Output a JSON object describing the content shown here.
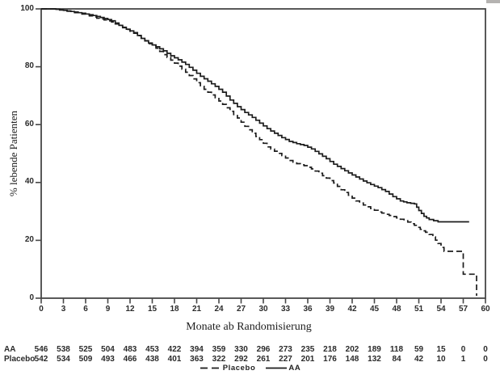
{
  "figure": {
    "background": "#ffffff",
    "frame_color": "#474747",
    "curve_color": "#1c1c1c",
    "text_color": "#2a2a2a"
  },
  "chart_data": {
    "type": "line",
    "subtype": "kaplan-meier-step",
    "title": "",
    "xlabel": "Monate ab Randomisierung",
    "ylabel": "% lebende Patienten",
    "xlim": [
      0,
      60
    ],
    "ylim": [
      0,
      100
    ],
    "x_ticks": [
      0,
      3,
      6,
      9,
      12,
      15,
      18,
      21,
      24,
      27,
      30,
      33,
      36,
      39,
      42,
      45,
      48,
      51,
      54,
      57,
      60
    ],
    "y_ticks": [
      0,
      20,
      40,
      60,
      80,
      100
    ],
    "grid": false,
    "legend_position": "bottom-center",
    "series": [
      {
        "name": "AA",
        "line": "solid",
        "points": [
          [
            0,
            100
          ],
          [
            1.5,
            100
          ],
          [
            2.5,
            99.7
          ],
          [
            3.5,
            99.3
          ],
          [
            4.5,
            98.9
          ],
          [
            5.5,
            98.5
          ],
          [
            6.5,
            98.0
          ],
          [
            7.5,
            97.4
          ],
          [
            8.5,
            96.7
          ],
          [
            9.5,
            95.9
          ],
          [
            10.5,
            94.3
          ],
          [
            11.5,
            93.0
          ],
          [
            12.5,
            91.8
          ],
          [
            13.5,
            89.8
          ],
          [
            14.5,
            88.2
          ],
          [
            15.5,
            86.9
          ],
          [
            16.5,
            85.5
          ],
          [
            17.5,
            83.8
          ],
          [
            18.5,
            82.4
          ],
          [
            19.5,
            80.8
          ],
          [
            20.5,
            78.8
          ],
          [
            21.5,
            76.7
          ],
          [
            22.5,
            75.0
          ],
          [
            23.5,
            73.2
          ],
          [
            24.5,
            71.2
          ],
          [
            25.5,
            68.5
          ],
          [
            26.5,
            66.2
          ],
          [
            27.5,
            64.2
          ],
          [
            28.5,
            62.5
          ],
          [
            29.5,
            60.5
          ],
          [
            30.5,
            58.6
          ],
          [
            31.5,
            57.0
          ],
          [
            32.5,
            55.5
          ],
          [
            33.5,
            54.2
          ],
          [
            34.5,
            53.4
          ],
          [
            35.5,
            52.8
          ],
          [
            36.5,
            51.6
          ],
          [
            37.5,
            49.9
          ],
          [
            38.5,
            48.2
          ],
          [
            39.5,
            46.3
          ],
          [
            40.5,
            44.8
          ],
          [
            41.5,
            43.3
          ],
          [
            42.5,
            41.9
          ],
          [
            43.5,
            40.5
          ],
          [
            44.5,
            39.3
          ],
          [
            45.5,
            38.2
          ],
          [
            46.5,
            36.9
          ],
          [
            47.5,
            35.1
          ],
          [
            48.5,
            33.6
          ],
          [
            49.4,
            33.0
          ],
          [
            50.4,
            32.6
          ],
          [
            51.0,
            30.3
          ],
          [
            51.7,
            28.3
          ],
          [
            52.4,
            27.2
          ],
          [
            53.6,
            26.4
          ],
          [
            57.8,
            26.4
          ]
        ]
      },
      {
        "name": "Placebo",
        "line": "dashed",
        "points": [
          [
            0,
            100
          ],
          [
            1.5,
            100
          ],
          [
            2.5,
            99.6
          ],
          [
            3.5,
            99.2
          ],
          [
            4.5,
            98.7
          ],
          [
            5.5,
            98.2
          ],
          [
            6.5,
            97.6
          ],
          [
            7.5,
            96.8
          ],
          [
            8.5,
            96.2
          ],
          [
            9.5,
            95.5
          ],
          [
            10.5,
            94.1
          ],
          [
            11.5,
            92.9
          ],
          [
            12.5,
            91.6
          ],
          [
            13.5,
            89.9
          ],
          [
            14.5,
            88.0
          ],
          [
            15.5,
            86.4
          ],
          [
            16.5,
            84.2
          ],
          [
            17.5,
            82.3
          ],
          [
            18.5,
            80.2
          ],
          [
            19.5,
            78.1
          ],
          [
            20.5,
            75.8
          ],
          [
            21.5,
            73.2
          ],
          [
            22.5,
            71.2
          ],
          [
            23.5,
            69.3
          ],
          [
            24.5,
            67.0
          ],
          [
            25.5,
            64.6
          ],
          [
            26.5,
            62.3
          ],
          [
            27.5,
            59.4
          ],
          [
            28.5,
            57.0
          ],
          [
            29.5,
            54.8
          ],
          [
            30.5,
            52.3
          ],
          [
            31.5,
            50.8
          ],
          [
            32.5,
            49.3
          ],
          [
            33.5,
            47.6
          ],
          [
            34.5,
            46.5
          ],
          [
            35.5,
            45.8
          ],
          [
            36.5,
            44.7
          ],
          [
            37.5,
            43.2
          ],
          [
            38.5,
            41.5
          ],
          [
            39.5,
            39.8
          ],
          [
            40.5,
            37.5
          ],
          [
            41.5,
            35.6
          ],
          [
            42.5,
            33.6
          ],
          [
            43.5,
            32.2
          ],
          [
            44.5,
            31.0
          ],
          [
            45.5,
            29.8
          ],
          [
            46.5,
            29.0
          ],
          [
            47.5,
            28.2
          ],
          [
            48.5,
            27.3
          ],
          [
            49.5,
            26.3
          ],
          [
            50.4,
            25.2
          ],
          [
            51.2,
            23.8
          ],
          [
            51.9,
            22.8
          ],
          [
            52.9,
            21.2
          ],
          [
            53.6,
            18.9
          ],
          [
            54.4,
            16.2
          ],
          [
            57.0,
            8.3
          ],
          [
            58.8,
            0.8
          ]
        ]
      }
    ],
    "at_risk_table": {
      "rows": [
        {
          "label": "AA",
          "counts": [
            546,
            538,
            525,
            504,
            483,
            453,
            422,
            394,
            359,
            330,
            296,
            273,
            235,
            218,
            202,
            189,
            118,
            59,
            15,
            0,
            0
          ]
        },
        {
          "label": "Placebo",
          "counts": [
            542,
            534,
            509,
            493,
            466,
            438,
            401,
            363,
            322,
            292,
            261,
            227,
            201,
            176,
            148,
            132,
            84,
            42,
            10,
            1,
            0
          ]
        }
      ]
    },
    "legend": [
      {
        "label": "Placebo",
        "line": "dashed"
      },
      {
        "label": "AA",
        "line": "solid"
      }
    ]
  }
}
